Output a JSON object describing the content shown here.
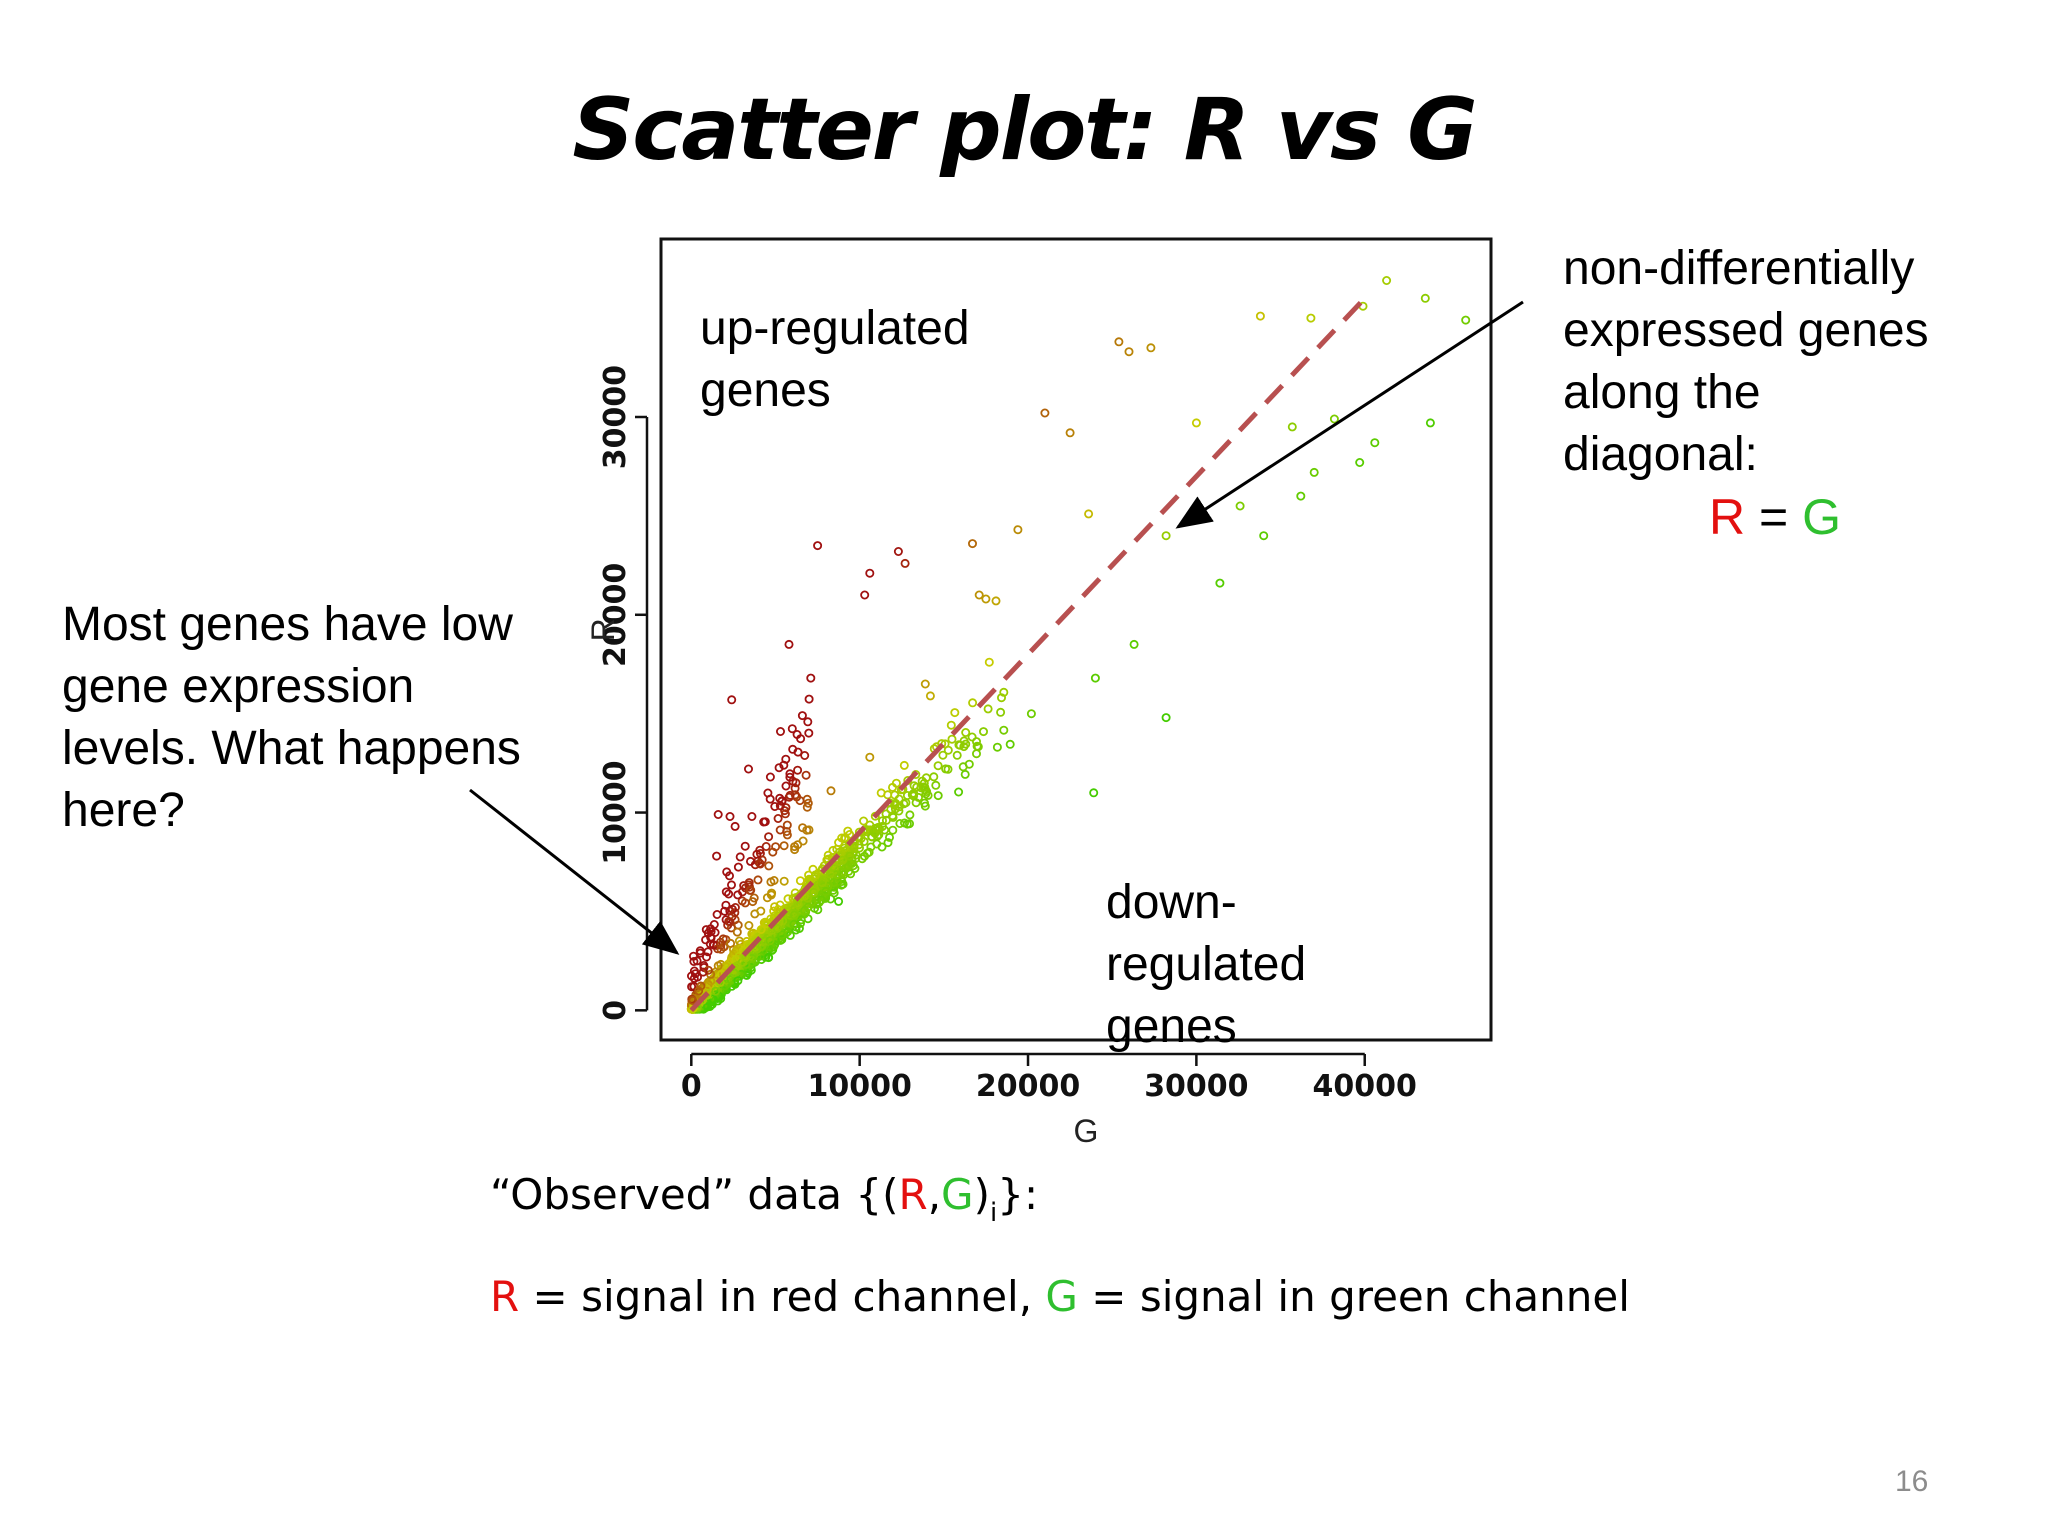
{
  "slide": {
    "title": "Scatter plot: R vs G",
    "page_number": "16"
  },
  "annotations": {
    "up_regulated": [
      "up-regulated",
      "genes"
    ],
    "down_regulated": [
      "down-",
      "regulated",
      "genes"
    ],
    "non_diff": [
      "non-differentially",
      "expressed genes",
      "along the",
      "diagonal:"
    ],
    "equation": {
      "left": "R",
      "op": " = ",
      "right": "G"
    },
    "low_expression": [
      "Most genes have low",
      "gene expression",
      "levels. What happens",
      "here?"
    ]
  },
  "observed_line": {
    "prefix": "“Observed” data {(",
    "r": "R",
    "comma": ",",
    "g": "G",
    "close": ")",
    "sub": "i",
    "suffix": "}:"
  },
  "definition_line": {
    "r": "R",
    "r_text": " = signal in red channel, ",
    "g": "G",
    "g_text": " = signal in green channel"
  },
  "colors": {
    "red_channel": "#e3100f",
    "green_channel": "#2fbf2f",
    "diagonal": "#b85050",
    "low_ratio_point": "#44cc00",
    "mid_point": "#c8cc00",
    "high_ratio_point": "#a01010"
  },
  "chart_data": {
    "type": "scatter",
    "title": "",
    "xlabel": "G",
    "ylabel": "R",
    "xlim": [
      -1800,
      47500
    ],
    "ylim": [
      -1500,
      39000
    ],
    "x_ticks": [
      0,
      10000,
      20000,
      30000,
      40000
    ],
    "y_ticks": [
      0,
      10000,
      20000,
      30000
    ],
    "x_tick_labels": [
      "0",
      "10000",
      "20000",
      "30000",
      "40000"
    ],
    "y_tick_labels": [
      "0",
      "10000",
      "20000",
      "30000"
    ],
    "grid": false,
    "legend": "none",
    "diagonal": {
      "from": [
        0,
        0
      ],
      "to": [
        40000,
        36000
      ],
      "style": "dashed"
    },
    "outliers": [
      [
        39900,
        35600
      ],
      [
        41300,
        36900
      ],
      [
        43600,
        36000
      ],
      [
        46000,
        34900
      ],
      [
        33800,
        35100
      ],
      [
        36800,
        35000
      ],
      [
        25400,
        33800
      ],
      [
        26000,
        33300
      ],
      [
        27300,
        33500
      ],
      [
        21000,
        30200
      ],
      [
        30000,
        29700
      ],
      [
        35700,
        29500
      ],
      [
        40600,
        28700
      ],
      [
        34000,
        24000
      ],
      [
        28200,
        14800
      ],
      [
        38200,
        29900
      ],
      [
        39700,
        27700
      ],
      [
        43900,
        29700
      ],
      [
        7500,
        23500
      ],
      [
        10600,
        22100
      ],
      [
        12300,
        23200
      ],
      [
        12700,
        22600
      ],
      [
        16700,
        23600
      ],
      [
        17100,
        21000
      ],
      [
        17500,
        20800
      ],
      [
        18100,
        20700
      ],
      [
        10300,
        21000
      ],
      [
        5800,
        18500
      ],
      [
        2400,
        15700
      ],
      [
        3400,
        12200
      ],
      [
        4700,
        11800
      ],
      [
        6600,
        14900
      ],
      [
        5300,
        14100
      ],
      [
        7100,
        16800
      ],
      [
        17700,
        17600
      ],
      [
        23600,
        25100
      ],
      [
        28200,
        24000
      ],
      [
        22500,
        29200
      ],
      [
        1600,
        9900
      ],
      [
        2300,
        9800
      ],
      [
        2600,
        9300
      ],
      [
        3600,
        9800
      ],
      [
        5400,
        10600
      ],
      [
        14200,
        15900
      ],
      [
        19400,
        24300
      ],
      [
        23900,
        11000
      ],
      [
        20200,
        15000
      ],
      [
        13900,
        16500
      ],
      [
        10600,
        12800
      ],
      [
        8300,
        11100
      ],
      [
        1500,
        7800
      ],
      [
        2100,
        7000
      ],
      [
        3200,
        8300
      ],
      [
        4100,
        7400
      ],
      [
        24000,
        16800
      ],
      [
        26300,
        18500
      ],
      [
        31400,
        21600
      ],
      [
        32600,
        25500
      ],
      [
        36200,
        26000
      ],
      [
        37000,
        27200
      ]
    ]
  }
}
